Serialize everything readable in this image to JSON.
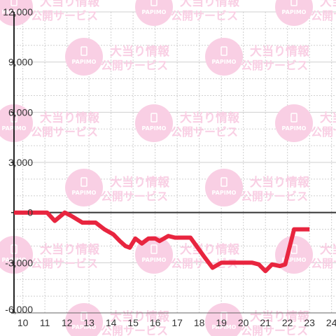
{
  "watermark": {
    "logo_text": "PAPIMO",
    "line1": "大当り情報",
    "line2": "公開サービス",
    "color": "#f9cfe4"
  },
  "chart_data": {
    "type": "line",
    "title": "",
    "xlabel": "",
    "ylabel": "",
    "xlim": [
      9.6,
      24.2
    ],
    "ylim": [
      -6000,
      12000
    ],
    "x_ticks": [
      10,
      11,
      12,
      13,
      14,
      15,
      16,
      17,
      18,
      19,
      20,
      21,
      22,
      23,
      24
    ],
    "x_tick_labels": [
      "10",
      "11",
      "12",
      "13",
      "14",
      "15",
      "16",
      "17",
      "18",
      "19",
      "20",
      "21",
      "22",
      "23",
      "24"
    ],
    "y_ticks": [
      -6000,
      -3000,
      0,
      3000,
      6000,
      9000,
      12000
    ],
    "y_tick_labels": [
      "-6,000",
      "-3,000",
      "0",
      "3,000",
      "6,000",
      "9,000",
      "12,000"
    ],
    "y_minor_step": 1000,
    "grid": true,
    "zero_line": true,
    "line_color": "#e8253f",
    "series": [
      {
        "x": [
          9.6,
          11.1,
          11.45,
          11.9,
          12.2,
          12.7,
          13.3,
          13.7,
          14.1,
          14.4,
          14.65,
          14.85,
          15.1,
          15.4,
          15.7,
          16.0,
          16.2,
          16.6,
          16.9,
          17.6,
          18.2,
          18.6,
          19.0,
          19.9,
          20.4,
          20.7,
          21.0,
          21.3,
          21.65,
          21.9,
          22.3,
          23.0
        ],
        "y": [
          0,
          0,
          -500,
          0,
          -200,
          -600,
          -600,
          -1000,
          -1300,
          -1700,
          -2000,
          -2100,
          -1550,
          -1850,
          -1550,
          -1550,
          -1700,
          -1400,
          -1500,
          -1500,
          -2600,
          -3300,
          -3000,
          -3000,
          -3000,
          -3100,
          -3500,
          -3100,
          -3200,
          -3100,
          -1000,
          -1000
        ]
      }
    ]
  }
}
